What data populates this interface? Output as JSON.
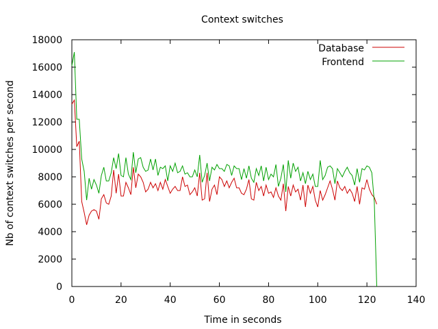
{
  "chart_data": {
    "type": "line",
    "title": "Context switches",
    "xlabel": "Time in seconds",
    "ylabel": "Nb of context switches per second",
    "xlim": [
      0,
      140
    ],
    "ylim": [
      0,
      18000
    ],
    "xticks": [
      0,
      20,
      40,
      60,
      80,
      100,
      120,
      140
    ],
    "yticks": [
      0,
      2000,
      4000,
      6000,
      8000,
      10000,
      12000,
      14000,
      16000,
      18000
    ],
    "grid": false,
    "legend": "top-right",
    "series": [
      {
        "name": "Database",
        "color": "#cc0000",
        "x": [
          0,
          1,
          2,
          3,
          4,
          5,
          6,
          7,
          8,
          9,
          10,
          11,
          12,
          13,
          14,
          15,
          16,
          17,
          18,
          19,
          20,
          21,
          22,
          23,
          24,
          25,
          26,
          27,
          28,
          29,
          30,
          31,
          32,
          33,
          34,
          35,
          36,
          37,
          38,
          39,
          40,
          41,
          42,
          43,
          44,
          45,
          46,
          47,
          48,
          49,
          50,
          51,
          52,
          53,
          54,
          55,
          56,
          57,
          58,
          59,
          60,
          61,
          62,
          63,
          64,
          65,
          66,
          67,
          68,
          69,
          70,
          71,
          72,
          73,
          74,
          75,
          76,
          77,
          78,
          79,
          80,
          81,
          82,
          83,
          84,
          85,
          86,
          87,
          88,
          89,
          90,
          91,
          92,
          93,
          94,
          95,
          96,
          97,
          98,
          99,
          100,
          101,
          102,
          103,
          104,
          105,
          106,
          107,
          108,
          109,
          110,
          111,
          112,
          113,
          114,
          115,
          116,
          117,
          118,
          119,
          120,
          121,
          122,
          123,
          124
        ],
        "y": [
          13300,
          13600,
          10200,
          10600,
          6200,
          5400,
          4500,
          5200,
          5500,
          5600,
          5500,
          4900,
          6400,
          6700,
          6100,
          6000,
          6600,
          8500,
          6800,
          8200,
          6600,
          6600,
          7600,
          7200,
          6700,
          8700,
          7200,
          8200,
          8000,
          7600,
          6900,
          7100,
          7600,
          7200,
          7500,
          7000,
          7600,
          7100,
          7800,
          7300,
          6800,
          7100,
          7300,
          7000,
          7000,
          8000,
          7300,
          7400,
          6700,
          6900,
          7200,
          6600,
          8300,
          6300,
          6400,
          8300,
          6200,
          7100,
          7400,
          6700,
          8000,
          7800,
          7300,
          7700,
          7200,
          7600,
          7900,
          7200,
          7200,
          6800,
          6700,
          7100,
          7800,
          6400,
          6300,
          7600,
          7000,
          7300,
          6600,
          7400,
          6800,
          6900,
          6500,
          7200,
          6600,
          6300,
          7500,
          5500,
          7300,
          6600,
          7400,
          6900,
          7100,
          6300,
          7400,
          5800,
          7400,
          6800,
          7300,
          6300,
          5800,
          7000,
          6300,
          6700,
          7200,
          7700,
          7100,
          6300,
          7700,
          7200,
          7000,
          7300,
          6800,
          7100,
          6800,
          6200,
          7300,
          6000,
          7200,
          7100,
          7800,
          7100,
          6700,
          6500,
          6000
        ]
      },
      {
        "name": "Frontend",
        "color": "#00a000",
        "x": [
          0,
          1,
          2,
          3,
          4,
          5,
          6,
          7,
          8,
          9,
          10,
          11,
          12,
          13,
          14,
          15,
          16,
          17,
          18,
          19,
          20,
          21,
          22,
          23,
          24,
          25,
          26,
          27,
          28,
          29,
          30,
          31,
          32,
          33,
          34,
          35,
          36,
          37,
          38,
          39,
          40,
          41,
          42,
          43,
          44,
          45,
          46,
          47,
          48,
          49,
          50,
          51,
          52,
          53,
          54,
          55,
          56,
          57,
          58,
          59,
          60,
          61,
          62,
          63,
          64,
          65,
          66,
          67,
          68,
          69,
          70,
          71,
          72,
          73,
          74,
          75,
          76,
          77,
          78,
          79,
          80,
          81,
          82,
          83,
          84,
          85,
          86,
          87,
          88,
          89,
          90,
          91,
          92,
          93,
          94,
          95,
          96,
          97,
          98,
          99,
          100,
          101,
          102,
          103,
          104,
          105,
          106,
          107,
          108,
          109,
          110,
          111,
          112,
          113,
          114,
          115,
          116,
          117,
          118,
          119,
          120,
          121,
          122,
          123,
          124
        ],
        "y": [
          16100,
          17100,
          12200,
          12200,
          9300,
          8400,
          6300,
          7900,
          7100,
          7800,
          7400,
          6800,
          8100,
          8700,
          7700,
          7700,
          8300,
          9400,
          8600,
          9700,
          8100,
          8000,
          9400,
          8200,
          7800,
          9800,
          8300,
          9300,
          9400,
          8700,
          8400,
          8500,
          9300,
          8500,
          9300,
          8100,
          8700,
          8600,
          8800,
          7700,
          8800,
          8400,
          9000,
          8300,
          8400,
          8800,
          8200,
          8300,
          8000,
          8000,
          8500,
          8000,
          9600,
          7600,
          8100,
          9000,
          7700,
          8700,
          8500,
          8900,
          8600,
          8600,
          8400,
          8900,
          8800,
          8100,
          8800,
          8600,
          8600,
          7800,
          8600,
          7900,
          8800,
          7900,
          7600,
          8600,
          8100,
          8800,
          7700,
          8700,
          7800,
          8200,
          8000,
          8900,
          7300,
          7900,
          8900,
          6900,
          9200,
          7900,
          9000,
          8400,
          8700,
          7700,
          8300,
          7500,
          8400,
          7800,
          8200,
          7300,
          7300,
          9200,
          7800,
          8100,
          8700,
          8800,
          8600,
          7500,
          8600,
          8300,
          8000,
          8400,
          8700,
          8300,
          8100,
          7400,
          8600,
          7600,
          8600,
          8500,
          8800,
          8700,
          8300,
          6200,
          0
        ]
      }
    ]
  }
}
